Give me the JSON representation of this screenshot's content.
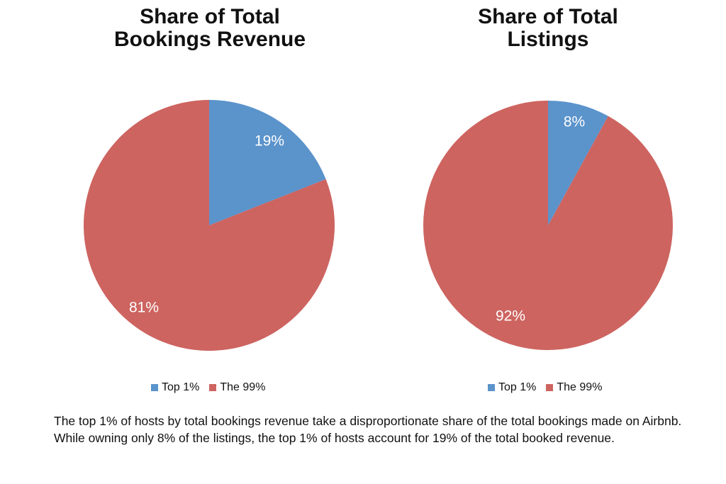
{
  "chart_data": [
    {
      "type": "pie",
      "title": "Share of Total Bookings Revenue",
      "categories": [
        "Top 1%",
        "The 99%"
      ],
      "values": [
        19,
        81
      ],
      "labels": [
        "19%",
        "81%"
      ],
      "colors": [
        "#5b93cb",
        "#cd6460"
      ],
      "legend": "bottom"
    },
    {
      "type": "pie",
      "title": "Share of Total Listings",
      "categories": [
        "Top 1%",
        "The 99%"
      ],
      "values": [
        8,
        92
      ],
      "labels": [
        "8%",
        "92%"
      ],
      "colors": [
        "#5b93cb",
        "#cd6460"
      ],
      "legend": "bottom"
    }
  ],
  "titles": {
    "chart1_line1": "Share of Total",
    "chart1_line2": "Bookings Revenue",
    "chart2_line1": "Share of Total",
    "chart2_line2": "Listings"
  },
  "legend": {
    "item1": "Top 1%",
    "item2": "The 99%"
  },
  "caption": "The top 1% of hosts by total bookings revenue take a disproportionate share of the  total bookings made on Airbnb.  While owning only 8% of the listings, the top 1% of hosts account for 19% of the total booked revenue."
}
